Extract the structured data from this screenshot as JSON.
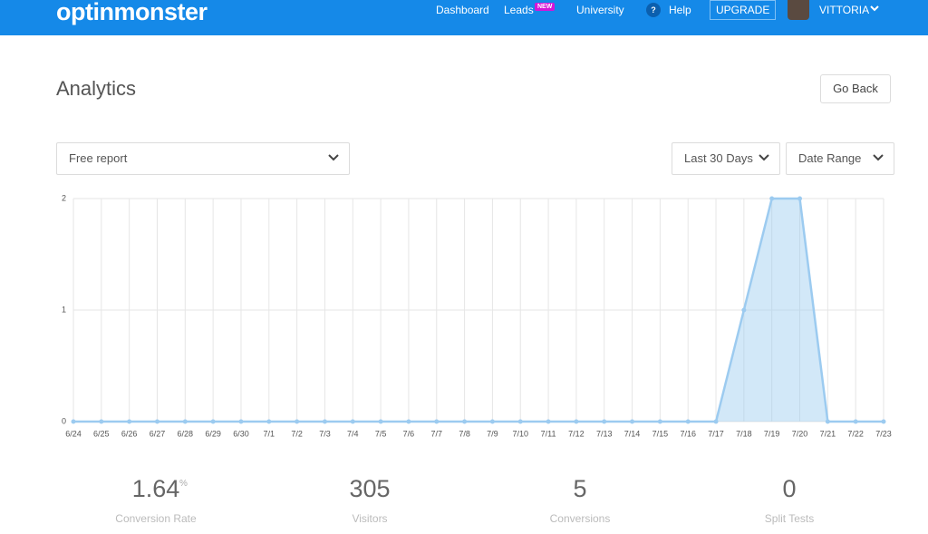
{
  "header": {
    "logo": "optinmonster",
    "nav": [
      "Dashboard",
      "Leads",
      "University",
      "Help"
    ],
    "badge": "NEW",
    "help_icon": "?",
    "upgrade": "UPGRADE",
    "user": "VITTORIA"
  },
  "page": {
    "title": "Analytics",
    "back_button": "Go Back",
    "report_select": "Free report",
    "period_select": "Last 30 Days",
    "range_select": "Date Range"
  },
  "chart_data": {
    "type": "area",
    "categories": [
      "6/24",
      "6/25",
      "6/26",
      "6/27",
      "6/28",
      "6/29",
      "6/30",
      "7/1",
      "7/2",
      "7/3",
      "7/4",
      "7/5",
      "7/6",
      "7/7",
      "7/8",
      "7/9",
      "7/10",
      "7/11",
      "7/12",
      "7/13",
      "7/14",
      "7/15",
      "7/16",
      "7/17",
      "7/18",
      "7/19",
      "7/20",
      "7/21",
      "7/22",
      "7/23"
    ],
    "values": [
      0,
      0,
      0,
      0,
      0,
      0,
      0,
      0,
      0,
      0,
      0,
      0,
      0,
      0,
      0,
      0,
      0,
      0,
      0,
      0,
      0,
      0,
      0,
      0,
      1,
      2,
      2,
      0,
      0,
      0
    ],
    "color": "#9ccbf0",
    "ylim": [
      0,
      2
    ],
    "yticks": [
      0,
      1,
      2
    ],
    "grid": true
  },
  "stats": [
    {
      "value": 1.64,
      "unit": "%",
      "label": "Conversion Rate"
    },
    {
      "value": 305,
      "label": "Visitors"
    },
    {
      "value": 5,
      "label": "Conversions"
    },
    {
      "value": 0,
      "label": "Split Tests"
    }
  ]
}
